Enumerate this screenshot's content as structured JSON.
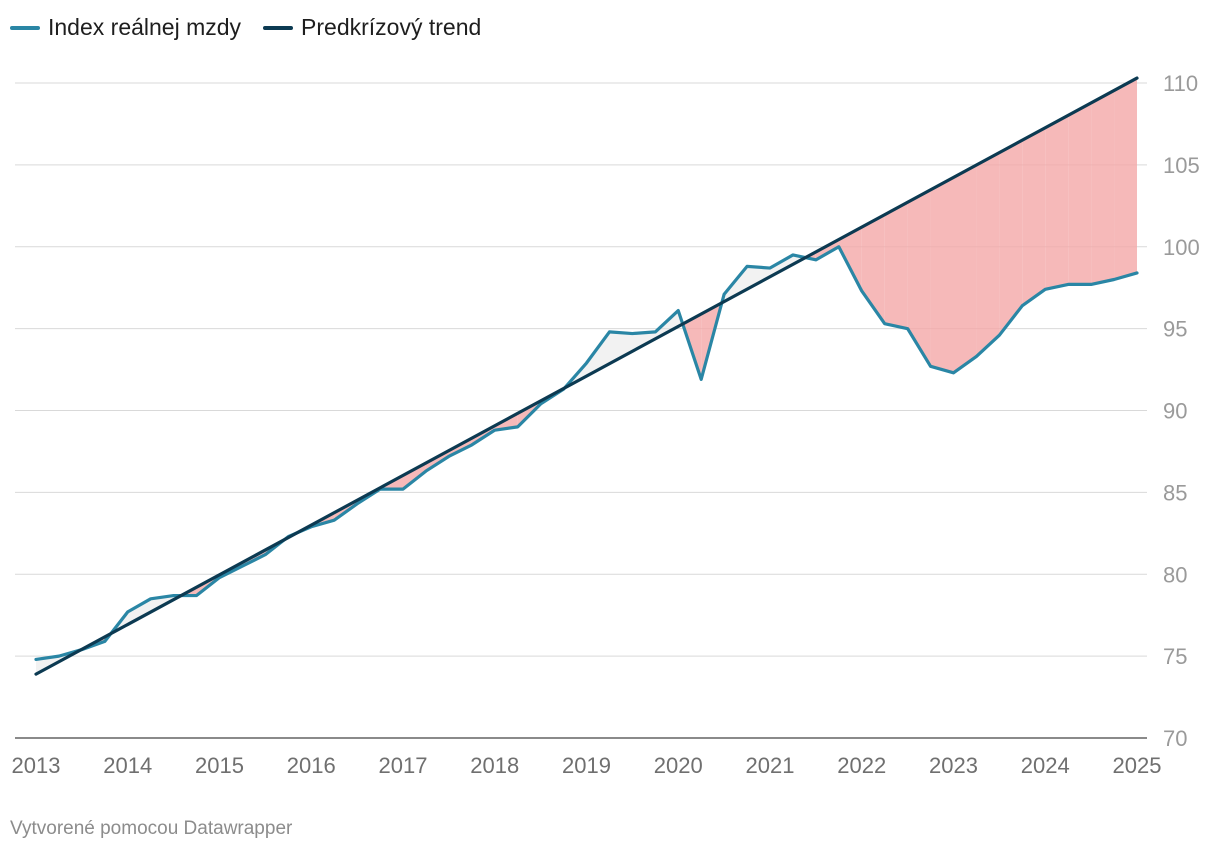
{
  "legend": {
    "items": [
      {
        "label": "Index reálnej mzdy",
        "color": "#2a86a5"
      },
      {
        "label": "Predkrízový trend",
        "color": "#0c3a52"
      }
    ]
  },
  "footer": {
    "credit": "Vytvorené pomocou Datawrapper"
  },
  "colors": {
    "gap_below_trend": "#f4a8a8",
    "gap_above_trend": "#e2e2e2",
    "grid": "#d9d9d9"
  },
  "chart_data": {
    "type": "line",
    "title": "",
    "xlabel": "",
    "ylabel": "",
    "xlim": [
      2013,
      2025
    ],
    "ylim": [
      70,
      110
    ],
    "x_ticks": [
      2013,
      2014,
      2015,
      2016,
      2017,
      2018,
      2019,
      2020,
      2021,
      2022,
      2023,
      2024,
      2025
    ],
    "y_ticks": [
      70,
      75,
      80,
      85,
      90,
      95,
      100,
      105,
      110
    ],
    "y_axis_position": "right",
    "grid": true,
    "legend_position": "top-left",
    "series": [
      {
        "name": "Index reálnej mzdy",
        "x": [
          2013,
          2013.25,
          2013.5,
          2013.75,
          2014,
          2014.25,
          2014.5,
          2014.75,
          2015,
          2015.25,
          2015.5,
          2015.75,
          2016,
          2016.25,
          2016.5,
          2016.75,
          2017,
          2017.25,
          2017.5,
          2017.75,
          2018,
          2018.25,
          2018.5,
          2018.75,
          2019,
          2019.25,
          2019.5,
          2019.75,
          2020,
          2020.25,
          2020.5,
          2020.75,
          2021,
          2021.25,
          2021.5,
          2021.75,
          2022,
          2022.25,
          2022.5,
          2022.75,
          2023,
          2023.25,
          2023.5,
          2023.75,
          2024,
          2024.25,
          2024.5,
          2024.75,
          2025
        ],
        "values": [
          74.8,
          75.0,
          75.4,
          75.9,
          77.7,
          78.5,
          78.7,
          78.7,
          79.8,
          80.5,
          81.2,
          82.3,
          82.9,
          83.3,
          84.3,
          85.2,
          85.2,
          86.3,
          87.2,
          87.9,
          88.8,
          89.0,
          90.4,
          91.3,
          92.9,
          94.8,
          94.7,
          94.8,
          96.1,
          91.9,
          97.1,
          98.8,
          98.7,
          99.5,
          99.2,
          100.0,
          97.3,
          95.3,
          95.0,
          92.7,
          92.3,
          93.3,
          94.6,
          96.4,
          97.4,
          97.7,
          97.7,
          98.0,
          98.4
        ]
      },
      {
        "name": "Predkrízový trend",
        "x": [
          2013,
          2025
        ],
        "values": [
          73.9,
          110.3
        ]
      }
    ]
  }
}
